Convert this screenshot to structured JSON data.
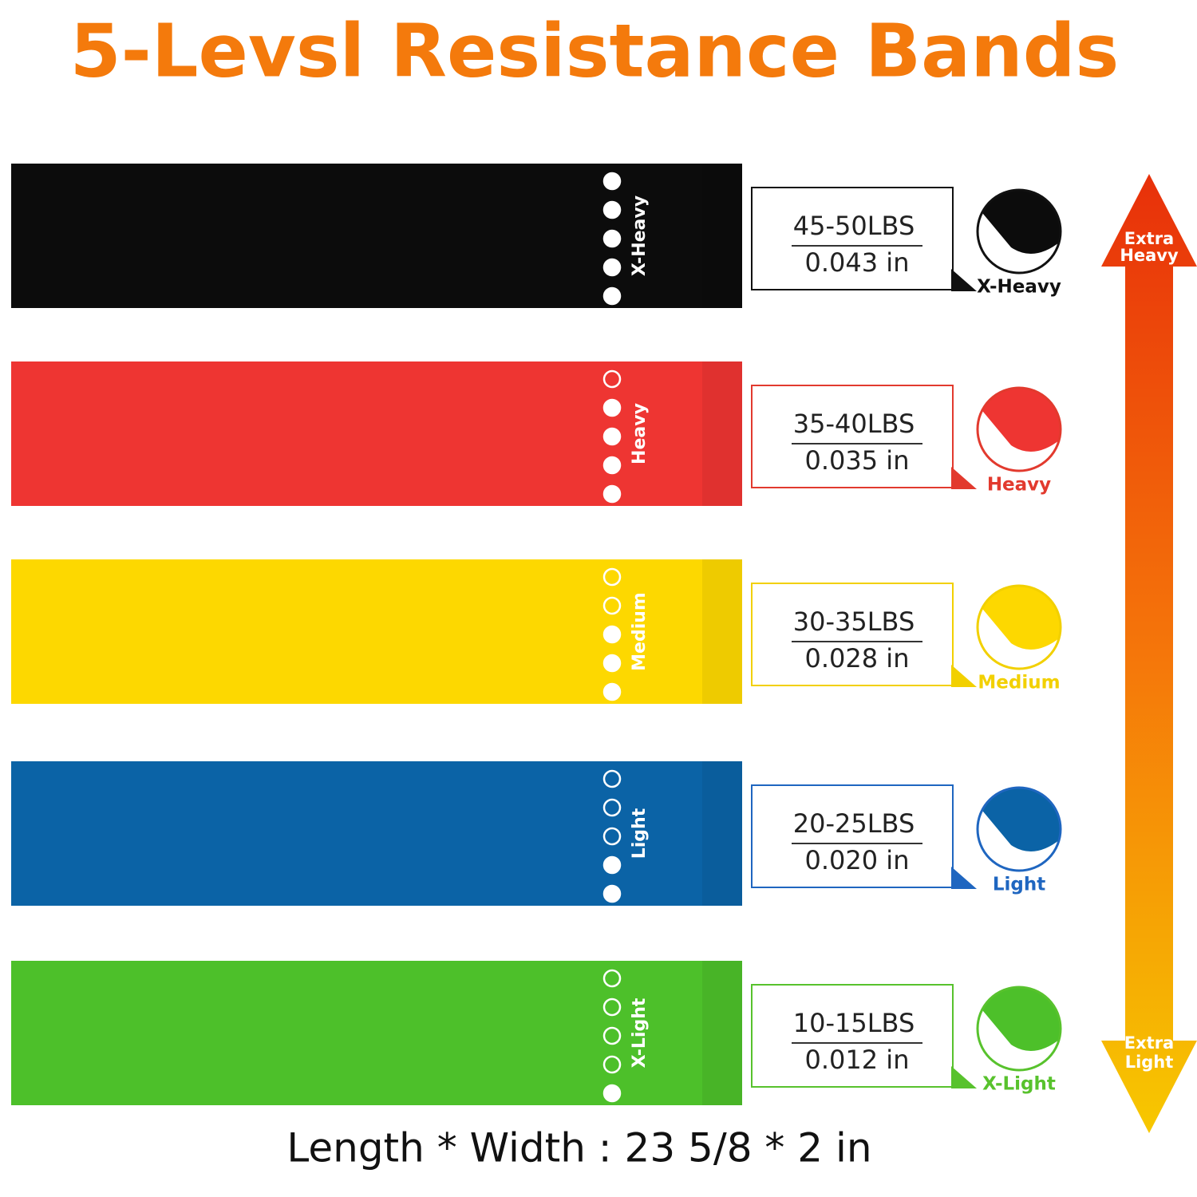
{
  "title": "5-Levsl Resistance Bands",
  "bands": [
    {
      "label": "X-Heavy",
      "weight": "45-50LBS",
      "thickness": "0.043 in",
      "color": "#0c0c0c",
      "tag_color": "#111111"
    },
    {
      "label": "Heavy",
      "weight": "35-40LBS",
      "thickness": "0.035 in",
      "color": "#ee3532",
      "tag_color": "#e23a2e"
    },
    {
      "label": "Medium",
      "weight": "30-35LBS",
      "thickness": "0.028 in",
      "color": "#fdd800",
      "tag_color": "#f2d000"
    },
    {
      "label": "Light",
      "weight": "20-25LBS",
      "thickness": "0.020 in",
      "color": "#0b63a6",
      "tag_color": "#1f66c0"
    },
    {
      "label": "X-Light",
      "weight": "10-15LBS",
      "thickness": "0.012 in",
      "color": "#4dc02a",
      "tag_color": "#58c22d"
    }
  ],
  "arrow": {
    "top": "Extra Heavy",
    "bottom": "Extra Light"
  },
  "dimensions": "Length * Width : 23 5/8 *  2 in"
}
